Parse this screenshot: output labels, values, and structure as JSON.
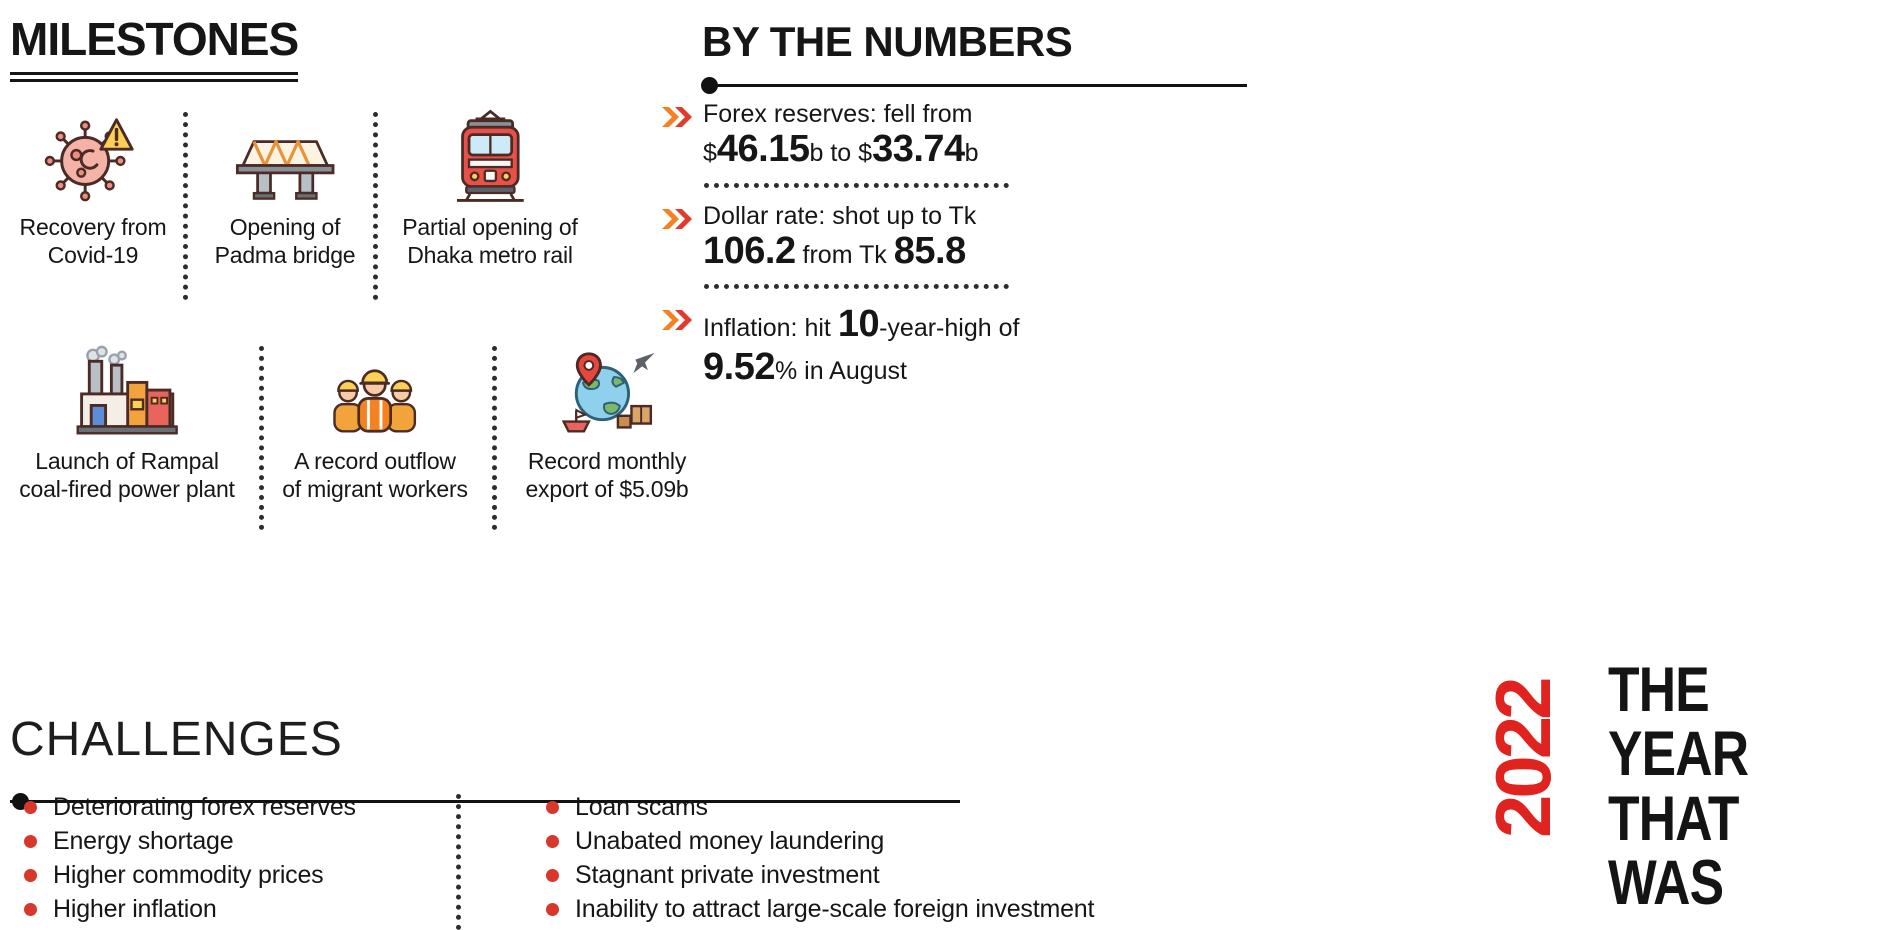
{
  "colors": {
    "red": "#e0231f",
    "orange": "#f58220",
    "ink": "#161616"
  },
  "milestones": {
    "title": "MILESTONES",
    "items": [
      {
        "icon": "covid-virus-icon",
        "label": "Recovery from\nCovid-19"
      },
      {
        "icon": "padma-bridge-icon",
        "label": "Opening of\nPadma bridge"
      },
      {
        "icon": "metro-rail-icon",
        "label": "Partial opening of\nDhaka metro rail"
      },
      {
        "icon": "power-plant-icon",
        "label": "Launch of Rampal\ncoal-fired power plant"
      },
      {
        "icon": "migrant-workers-icon",
        "label": "A record outflow\nof migrant workers"
      },
      {
        "icon": "export-globe-icon",
        "label": "Record monthly\nexport of $5.09b"
      }
    ]
  },
  "by_the_numbers": {
    "title": "BY THE NUMBERS",
    "items": [
      {
        "lines": [
          [
            {
              "t": "Forex reserves: fell from"
            }
          ],
          [
            {
              "t": "$"
            },
            {
              "t": "46.15",
              "big": true
            },
            {
              "t": "b to "
            },
            {
              "t": "$"
            },
            {
              "t": "33.74",
              "big": true
            },
            {
              "t": "b"
            }
          ]
        ]
      },
      {
        "lines": [
          [
            {
              "t": "Dollar rate: shot up to Tk"
            }
          ],
          [
            {
              "t": "106.2",
              "big": true
            },
            {
              "t": " from Tk "
            },
            {
              "t": "85.8",
              "big": true
            }
          ]
        ]
      },
      {
        "lines": [
          [
            {
              "t": "Inflation: hit "
            },
            {
              "t": "10",
              "big": true
            },
            {
              "t": "-year-high of"
            }
          ],
          [
            {
              "t": "9.52",
              "big": true
            },
            {
              "t": "% in August"
            }
          ]
        ]
      }
    ]
  },
  "challenges": {
    "title": "CHALLENGES",
    "left": [
      "Deteriorating forex reserves",
      "Energy shortage",
      "Higher commodity prices",
      "Higher inflation"
    ],
    "right": [
      "Loan scams",
      "Unabated money laundering",
      "Stagnant private investment",
      "Inability to attract large-scale foreign investment"
    ]
  },
  "badge": {
    "year": "2022",
    "line1": "THE YEAR",
    "line2": "THAT WAS"
  }
}
